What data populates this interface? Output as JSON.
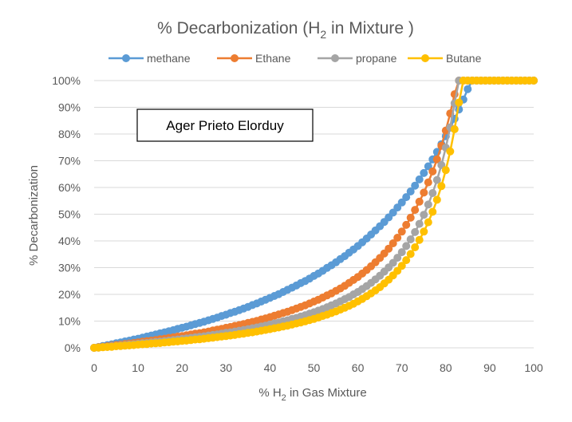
{
  "chart_data": {
    "type": "scatter",
    "title": "% Decarbonization (H",
    "title_sub": "2",
    "title_end": " in Mixture )",
    "xlabel_pre": "% H",
    "xlabel_sub": "2",
    "xlabel_post": " in Gas Mixture",
    "ylabel": "% Decarbonization",
    "xlim": [
      0,
      100
    ],
    "ylim": [
      0,
      100
    ],
    "x_ticks": [
      "0",
      "10",
      "20",
      "30",
      "40",
      "50",
      "60",
      "70",
      "80",
      "90",
      "100"
    ],
    "y_ticks": [
      "0%",
      "10%",
      "20%",
      "30%",
      "40%",
      "50%",
      "60%",
      "70%",
      "80%",
      "90%",
      "100%"
    ],
    "grid": true,
    "legend_position": "top",
    "annotation": "Ager Prieto Elorduy",
    "x": [
      0,
      1,
      2,
      3,
      4,
      5,
      6,
      7,
      8,
      9,
      10,
      11,
      12,
      13,
      14,
      15,
      16,
      17,
      18,
      19,
      20,
      21,
      22,
      23,
      24,
      25,
      26,
      27,
      28,
      29,
      30,
      31,
      32,
      33,
      34,
      35,
      36,
      37,
      38,
      39,
      40,
      41,
      42,
      43,
      44,
      45,
      46,
      47,
      48,
      49,
      50,
      51,
      52,
      53,
      54,
      55,
      56,
      57,
      58,
      59,
      60,
      61,
      62,
      63,
      64,
      65,
      66,
      67,
      68,
      69,
      70,
      71,
      72,
      73,
      74,
      75,
      76,
      77,
      78,
      79,
      80,
      81,
      82,
      83,
      84,
      85,
      86,
      87,
      88,
      89,
      90,
      91,
      92,
      93,
      94,
      95,
      96,
      97,
      98,
      99,
      100
    ],
    "series": [
      {
        "name": "methane",
        "color": "#5B9BD5",
        "values": [
          0,
          0.3,
          0.7,
          1.0,
          1.3,
          1.7,
          2.0,
          2.4,
          2.7,
          3.1,
          3.4,
          3.8,
          4.2,
          4.6,
          5.0,
          5.4,
          5.8,
          6.2,
          6.6,
          7.1,
          7.5,
          7.9,
          8.4,
          8.9,
          9.3,
          9.8,
          10.3,
          10.8,
          11.3,
          11.9,
          12.4,
          13.0,
          13.5,
          14.1,
          14.7,
          15.3,
          16.0,
          16.6,
          17.3,
          18.0,
          18.7,
          19.4,
          20.1,
          20.9,
          21.7,
          22.5,
          23.3,
          24.2,
          25.0,
          25.9,
          26.9,
          27.8,
          28.8,
          29.9,
          30.9,
          32.0,
          33.2,
          34.3,
          35.6,
          36.8,
          38.1,
          39.5,
          40.9,
          42.4,
          43.9,
          45.5,
          47.1,
          48.8,
          50.6,
          52.5,
          54.4,
          56.4,
          58.5,
          60.7,
          63.0,
          65.4,
          67.9,
          70.5,
          73.3,
          76.2,
          79.2,
          82.4,
          85.7,
          89.2,
          92.9,
          96.8,
          100,
          100,
          100,
          100,
          100,
          100,
          100,
          100,
          100,
          100,
          100,
          100,
          100,
          100,
          100
        ]
      },
      {
        "name": "Ethane",
        "color": "#ED7D31",
        "values": [
          0,
          0.2,
          0.4,
          0.6,
          0.8,
          1.0,
          1.2,
          1.4,
          1.6,
          1.8,
          2.0,
          2.3,
          2.5,
          2.7,
          2.9,
          3.2,
          3.4,
          3.7,
          3.9,
          4.2,
          4.4,
          4.7,
          5.0,
          5.3,
          5.5,
          5.8,
          6.1,
          6.5,
          6.8,
          7.1,
          7.5,
          7.8,
          8.2,
          8.5,
          8.9,
          9.3,
          9.7,
          10.1,
          10.6,
          11.0,
          11.5,
          12.0,
          12.5,
          13.0,
          13.5,
          14.1,
          14.7,
          15.3,
          15.9,
          16.6,
          17.3,
          18.0,
          18.8,
          19.6,
          20.4,
          21.3,
          22.2,
          23.2,
          24.3,
          25.4,
          26.5,
          27.8,
          29.1,
          30.5,
          32.0,
          33.6,
          35.3,
          37.1,
          39.1,
          41.2,
          43.5,
          46.0,
          48.7,
          51.6,
          54.7,
          58.1,
          61.9,
          66.0,
          70.5,
          75.6,
          81.3,
          87.7,
          94.9,
          100,
          100,
          100,
          100,
          100,
          100,
          100,
          100,
          100,
          100,
          100,
          100,
          100,
          100,
          100,
          100,
          100,
          100
        ]
      },
      {
        "name": "propane",
        "color": "#A5A5A5",
        "values": [
          0,
          0.1,
          0.3,
          0.4,
          0.6,
          0.7,
          0.9,
          1.0,
          1.2,
          1.3,
          1.5,
          1.7,
          1.8,
          2.0,
          2.2,
          2.3,
          2.5,
          2.7,
          2.9,
          3.1,
          3.3,
          3.5,
          3.7,
          3.9,
          4.1,
          4.3,
          4.6,
          4.8,
          5.0,
          5.3,
          5.6,
          5.8,
          6.1,
          6.4,
          6.7,
          7.0,
          7.3,
          7.6,
          8.0,
          8.3,
          8.7,
          9.1,
          9.5,
          9.9,
          10.3,
          10.8,
          11.2,
          11.7,
          12.2,
          12.8,
          13.3,
          13.9,
          14.5,
          15.2,
          15.9,
          16.6,
          17.4,
          18.2,
          19.0,
          20.0,
          20.9,
          22.0,
          23.1,
          24.3,
          25.6,
          27.0,
          28.5,
          30.1,
          31.8,
          33.7,
          35.8,
          38.1,
          40.6,
          43.3,
          46.4,
          49.8,
          53.6,
          57.9,
          62.8,
          68.4,
          74.9,
          82.5,
          91.5,
          100,
          100,
          100,
          100,
          100,
          100,
          100,
          100,
          100,
          100,
          100,
          100,
          100,
          100,
          100,
          100,
          100,
          100
        ]
      },
      {
        "name": "Butane",
        "color": "#FFC000",
        "values": [
          0,
          0.1,
          0.2,
          0.3,
          0.4,
          0.6,
          0.7,
          0.8,
          0.9,
          1.0,
          1.2,
          1.3,
          1.4,
          1.6,
          1.7,
          1.8,
          2.0,
          2.1,
          2.3,
          2.4,
          2.6,
          2.7,
          2.9,
          3.1,
          3.2,
          3.4,
          3.6,
          3.8,
          4.0,
          4.2,
          4.4,
          4.6,
          4.8,
          5.1,
          5.3,
          5.6,
          5.8,
          6.1,
          6.4,
          6.7,
          7.0,
          7.3,
          7.6,
          8.0,
          8.3,
          8.7,
          9.1,
          9.5,
          9.9,
          10.4,
          10.8,
          11.3,
          11.9,
          12.4,
          13.0,
          13.6,
          14.3,
          15.0,
          15.7,
          16.5,
          17.4,
          18.3,
          19.3,
          20.4,
          21.5,
          22.7,
          24.1,
          25.5,
          27.1,
          28.8,
          30.7,
          32.8,
          35.1,
          37.6,
          40.4,
          43.5,
          47.0,
          50.9,
          55.4,
          60.5,
          66.5,
          73.5,
          81.8,
          91.8,
          100,
          100,
          100,
          100,
          100,
          100,
          100,
          100,
          100,
          100,
          100,
          100,
          100,
          100,
          100,
          100,
          100
        ]
      }
    ]
  }
}
